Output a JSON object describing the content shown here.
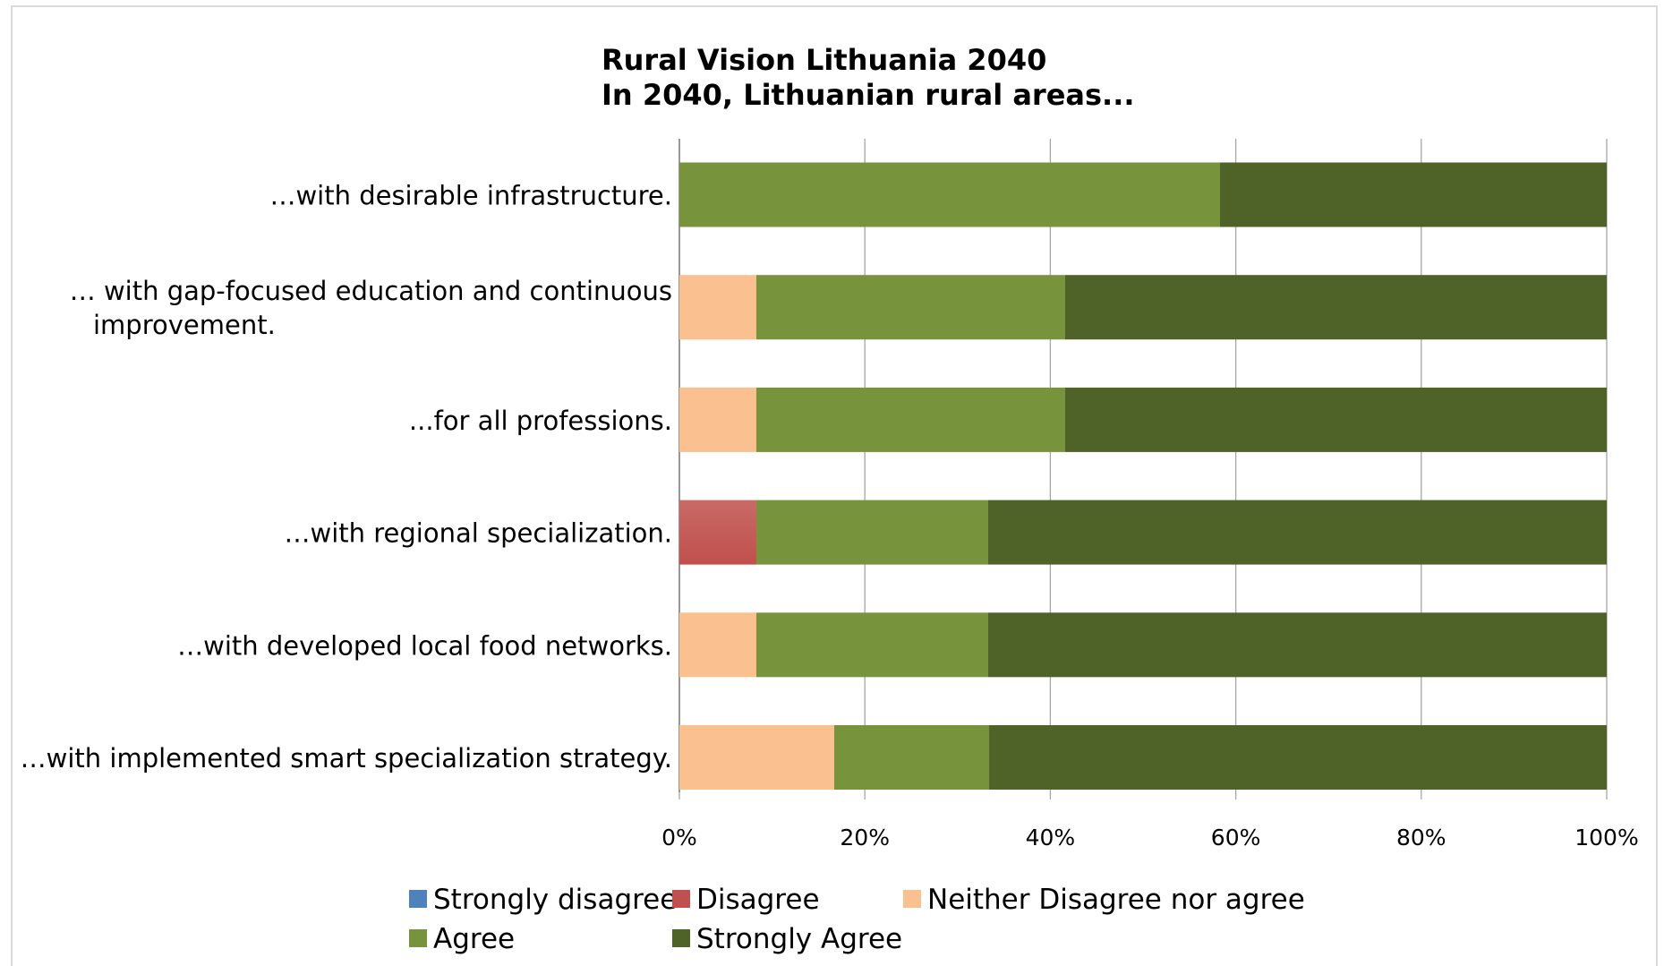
{
  "chart_data": {
    "type": "bar",
    "orientation": "horizontal",
    "stacked": "percent",
    "title": [
      "Rural Vision Lithuania 2040",
      "In 2040, Lithuanian rural areas..."
    ],
    "categories": [
      [
        "…with desirable infrastructure."
      ],
      [
        "… with gap-focused education and continuous",
        "improvement."
      ],
      [
        "...for all professions."
      ],
      [
        "…with regional specialization."
      ],
      [
        "…with developed local food networks."
      ],
      [
        "…with implemented smart specialization strategy."
      ]
    ],
    "series": [
      {
        "name": "Strongly disagree",
        "color": "#4f81bd",
        "values": [
          0,
          0,
          0,
          0,
          0,
          0
        ]
      },
      {
        "name": "Disagree",
        "color": "#c0504d",
        "values": [
          0,
          0,
          0,
          8.3,
          0,
          0
        ]
      },
      {
        "name": "Neither Disagree nor agree",
        "color": "#fac090",
        "values": [
          0,
          8.3,
          8.3,
          0,
          8.3,
          16.7
        ]
      },
      {
        "name": "Agree",
        "color": "#77933c",
        "values": [
          58.3,
          33.3,
          33.3,
          25.0,
          25.0,
          16.7
        ]
      },
      {
        "name": "Strongly Agree",
        "color": "#4f6228",
        "values": [
          41.7,
          58.4,
          58.4,
          66.7,
          66.7,
          66.6
        ]
      }
    ],
    "xlim": [
      0,
      100
    ],
    "xticks": [
      "0%",
      "20%",
      "40%",
      "60%",
      "80%",
      "100%"
    ],
    "grid": true,
    "legend_position": "bottom"
  }
}
